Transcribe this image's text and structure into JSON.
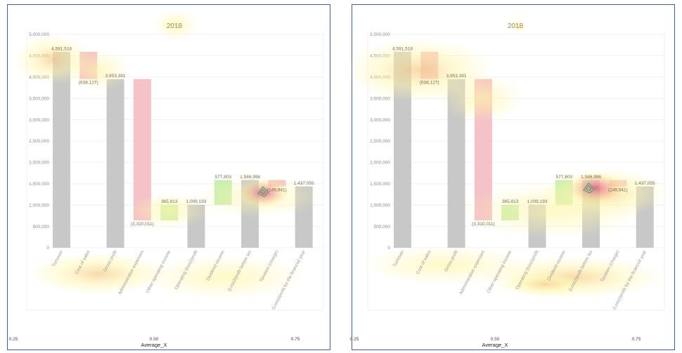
{
  "chart_data": [
    {
      "type": "bar",
      "subtype": "waterfall",
      "panel": "left",
      "title": "2018",
      "categories": [
        "Turnover",
        "Cost of sales",
        "Gross profit",
        "Administrative expenses",
        "Other operating income",
        "Operating (loss)/profit",
        "Dividend income",
        "(Loss)/profit before tax",
        "Taxation (charge)",
        "(Loss)/profit for the financial year"
      ],
      "values": [
        4591518,
        -638127,
        3953391,
        -3310011,
        365813,
        1009193,
        577803,
        1586996,
        -149941,
        1437055
      ],
      "data_labels": [
        "4,591,518",
        "(638,127)",
        "3,953,391",
        "(3,310,011)",
        "365,813",
        "1,009,193",
        "577,803",
        "1,586,996",
        "(149,941)",
        "1,437,055"
      ],
      "ylim": [
        0,
        5000000
      ],
      "y_ticks": [
        "0",
        "500,000",
        "1,000,000",
        "1,500,000",
        "2,000,000",
        "2,500,000",
        "3,000,000",
        "3,500,000",
        "4,000,000",
        "4,500,000",
        "5,000,000"
      ],
      "x_axis_ticks": [
        "0.25",
        "0.50",
        "0.75"
      ],
      "xlabel": "Average_X",
      "grid": true,
      "overlay": "heatmap"
    },
    {
      "type": "bar",
      "subtype": "waterfall",
      "panel": "right",
      "title": "2018",
      "categories": [
        "Turnover",
        "Cost of sales",
        "Gross profit",
        "Administrative expenses",
        "Other operating income",
        "Operating (loss)/profit",
        "Dividend income",
        "(Loss)/profit before tax",
        "Taxation (charge)",
        "(Loss)/profit for the financial year"
      ],
      "values": [
        4591518,
        -638127,
        3953391,
        -3310011,
        365813,
        1009193,
        577803,
        1586996,
        -149941,
        1437055
      ],
      "data_labels": [
        "4,591,518",
        "(638,127)",
        "3,953,391",
        "(3,310,011)",
        "365,813",
        "1,009,193",
        "577,803",
        "1,586,996",
        "(149,941)",
        "1,437,055"
      ],
      "ylim": [
        0,
        5000000
      ],
      "y_ticks": [
        "0",
        "500,000",
        "1,000,000",
        "1,500,000",
        "2,000,000",
        "2,500,000",
        "3,000,000",
        "3,500,000",
        "4,000,000",
        "4,500,000",
        "5,000,000"
      ],
      "x_axis_ticks": [
        "0.25",
        "0.50",
        "0.75"
      ],
      "xlabel": "Average_X",
      "grid": true,
      "overlay": "heatmap"
    }
  ],
  "colors": {
    "total_bar": "#c8c8c8",
    "decrease_bar": "#f4c2c8",
    "increase_bar": "#c9eeb0",
    "frame": "#3b5fa8",
    "heat_low": "#fff6a8",
    "heat_mid": "#f6c98a",
    "heat_high": "#e0607a"
  }
}
